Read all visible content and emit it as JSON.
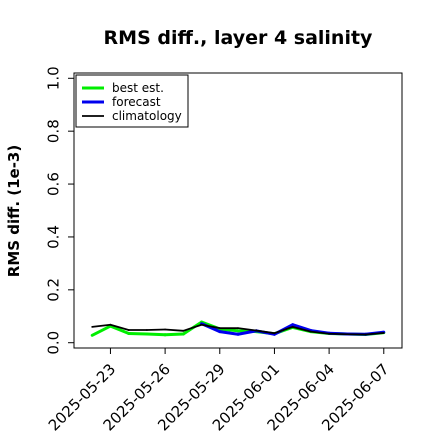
{
  "chart_data": {
    "type": "line",
    "title": "RMS diff., layer 4 salinity",
    "xlabel": "",
    "ylabel": "RMS diff. (1e-3)",
    "ylim": [
      -0.02,
      1.02
    ],
    "yticks": [
      0.0,
      0.2,
      0.4,
      0.6,
      0.8,
      1.0
    ],
    "ytick_labels": [
      "0.0",
      "0.2",
      "0.4",
      "0.6",
      "0.8",
      "1.0"
    ],
    "x_dates": [
      "2025-05-22",
      "2025-05-23",
      "2025-05-24",
      "2025-05-25",
      "2025-05-26",
      "2025-05-27",
      "2025-05-28",
      "2025-05-29",
      "2025-05-30",
      "2025-05-31",
      "2025-06-01",
      "2025-06-02",
      "2025-06-03",
      "2025-06-04",
      "2025-06-05",
      "2025-06-06",
      "2025-06-07"
    ],
    "xlim": [
      "2025-05-21",
      "2025-06-08"
    ],
    "xticks": [
      "2025-05-23",
      "2025-05-26",
      "2025-05-29",
      "2025-06-01",
      "2025-06-04",
      "2025-06-07"
    ],
    "highlight_tick": "2025-05-29",
    "highlight_color": "#228B22",
    "grid": false,
    "legend_position": "top-left",
    "series": [
      {
        "name": "best est.",
        "color": "#00ee00",
        "width": 3,
        "values": [
          0.028,
          0.063,
          0.035,
          0.033,
          0.03,
          0.033,
          0.078,
          0.052,
          0.045,
          0.042,
          0.034,
          0.058,
          0.042,
          0.035,
          0.033,
          0.031,
          0.038
        ]
      },
      {
        "name": "forecast",
        "color": "#0000ee",
        "width": 3,
        "values": [
          null,
          null,
          null,
          null,
          null,
          null,
          0.072,
          0.042,
          0.032,
          0.045,
          0.032,
          0.068,
          0.046,
          0.036,
          0.033,
          0.032,
          0.04
        ]
      },
      {
        "name": "climatology",
        "color": "#000000",
        "width": 1.8,
        "values": [
          0.06,
          0.068,
          0.048,
          0.048,
          0.05,
          0.045,
          0.068,
          0.055,
          0.055,
          0.046,
          0.036,
          0.06,
          0.042,
          0.034,
          0.032,
          0.031,
          0.037
        ]
      }
    ]
  }
}
